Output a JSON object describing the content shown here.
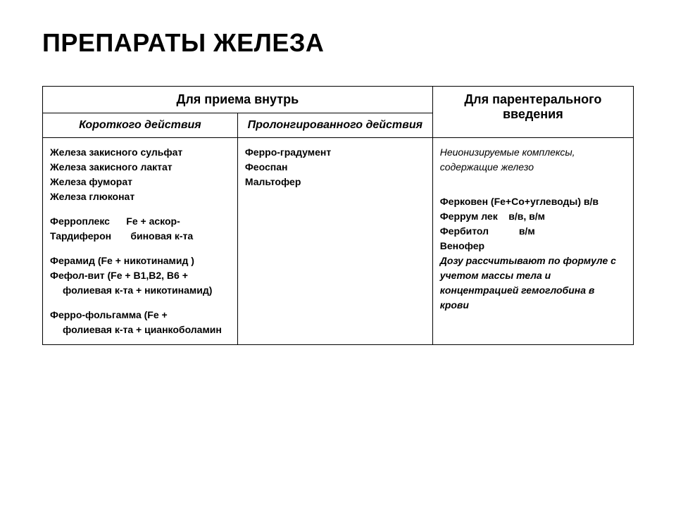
{
  "title": "ПРЕПАРАТЫ ЖЕЛЕЗА",
  "table": {
    "header": {
      "oral": "Для приема внутрь",
      "parenteral": "Для парентерального введения"
    },
    "subheader": {
      "short_acting": "Короткого действия",
      "prolonged": "Пролонгированного действия"
    },
    "short_acting": {
      "l1": "Железа закисного сульфат",
      "l2": "Железа закисного лактат",
      "l3": "Железа фуморат",
      "l4": "Железа глюконат",
      "l5a": "Ферроплекс",
      "l5b": "Fe + аскор-",
      "l6a": "Тардиферон",
      "l6b": "биновая к-та",
      "l7": "Ферамид (Fe + никотинамид )",
      "l8": "Фефол-вит (Fe + В1,В2, В6 +",
      "l8b": "фолиевая к-та + никотинамид)",
      "l9": "Ферро-фольгамма (Fe +",
      "l9b": "фолиевая к-та + цианкоболамин"
    },
    "prolonged": {
      "l1": "Ферро-градумент",
      "l2": "Феоспан",
      "l3": "Мальтофер"
    },
    "parenteral": {
      "note": "Неионизируемые комплексы, содержащие железо",
      "l1": "Ферковен (Fe+Co+углеводы) в/в",
      "l2a": "Феррум лек",
      "l2b": "в/в, в/м",
      "l3a": "Фербитол",
      "l3b": "в/м",
      "l4": "Венофер",
      "dose_note": "Дозу рассчитывают по формуле с учетом массы тела и концентрацией гемоглобина в крови"
    }
  },
  "style": {
    "title_fontsize": 36,
    "header_fontsize": 18,
    "subheader_fontsize": 16,
    "cell_fontsize": 14,
    "border_color": "#000000",
    "background_color": "#ffffff",
    "text_color": "#000000"
  }
}
